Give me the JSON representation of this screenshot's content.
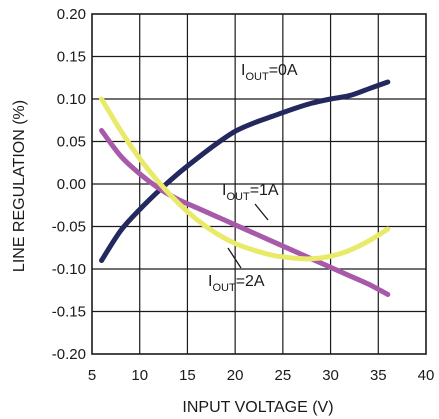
{
  "chart_data": {
    "type": "line",
    "xlabel": "INPUT VOLTAGE (V)",
    "ylabel": "LINE REGULATION  (%)",
    "xlim": [
      5,
      40
    ],
    "ylim": [
      -0.2,
      0.2
    ],
    "x_ticks": [
      "5",
      "10",
      "15",
      "20",
      "25",
      "30",
      "35",
      "40"
    ],
    "y_ticks": [
      "0.20",
      "0.15",
      "0.10",
      "0.05",
      "0.00",
      "-0.05",
      "-0.10",
      "-0.15",
      "-0.20"
    ],
    "grid": true,
    "series": [
      {
        "name": "IOUT=0A",
        "color": "#23285e",
        "x": [
          6,
          8,
          10,
          12,
          14,
          16,
          18,
          20,
          22,
          24,
          26,
          28,
          30,
          32,
          34,
          36
        ],
        "y": [
          -0.09,
          -0.055,
          -0.03,
          -0.008,
          0.012,
          0.03,
          0.047,
          0.062,
          0.072,
          0.08,
          0.088,
          0.095,
          0.1,
          0.104,
          0.112,
          0.12
        ]
      },
      {
        "name": "IOUT=1A",
        "color": "#a85aaa",
        "x": [
          6,
          8,
          10,
          12,
          14,
          16,
          18,
          20,
          22,
          24,
          26,
          28,
          30,
          32,
          34,
          36
        ],
        "y": [
          0.063,
          0.033,
          0.012,
          -0.005,
          -0.018,
          -0.028,
          -0.038,
          -0.048,
          -0.058,
          -0.068,
          -0.078,
          -0.088,
          -0.098,
          -0.108,
          -0.118,
          -0.13
        ]
      },
      {
        "name": "IOUT=2A",
        "color": "#eaea6a",
        "x": [
          6,
          8,
          10,
          12,
          14,
          16,
          18,
          20,
          22,
          24,
          26,
          28,
          30,
          32,
          34,
          36
        ],
        "y": [
          0.1,
          0.063,
          0.03,
          0.002,
          -0.022,
          -0.042,
          -0.058,
          -0.07,
          -0.078,
          -0.084,
          -0.087,
          -0.088,
          -0.085,
          -0.078,
          -0.067,
          -0.053
        ]
      }
    ],
    "annotations": [
      {
        "main": "I",
        "sub": "OUT",
        "rest": "=0A"
      },
      {
        "main": "I",
        "sub": "OUT",
        "rest": "=1A"
      },
      {
        "main": "I",
        "sub": "OUT",
        "rest": "=2A"
      }
    ]
  }
}
